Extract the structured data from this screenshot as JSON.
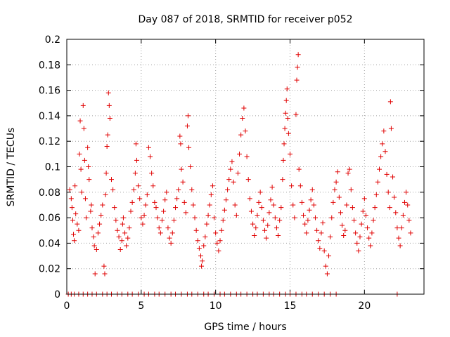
{
  "chart_data": {
    "type": "scatter",
    "title": "Day 087 of 2018, SRMTID for receiver p052",
    "xlabel": "GPS time / hours",
    "ylabel": "SRMTID / TECUs",
    "xlim": [
      0,
      24
    ],
    "ylim": [
      0,
      0.2
    ],
    "xticks": [
      0,
      5,
      10,
      15,
      20
    ],
    "xtick_labels": [
      "0",
      "5",
      "10",
      "15",
      "20"
    ],
    "yticks": [
      0,
      0.02,
      0.04,
      0.06,
      0.08,
      0.1,
      0.12,
      0.14,
      0.16,
      0.18,
      0.2
    ],
    "ytick_labels": [
      "0",
      "0.02",
      "0.04",
      "0.06",
      "0.08",
      "0.1",
      "0.12",
      "0.14",
      "0.16",
      "0.18",
      "0.2"
    ],
    "grid": true,
    "marker": "+",
    "color": "#e00000",
    "series": [
      {
        "name": "SRMTID",
        "points": [
          [
            0.2,
            0.082
          ],
          [
            0.3,
            0.075
          ],
          [
            0.35,
            0.068
          ],
          [
            0.4,
            0.058
          ],
          [
            0.45,
            0.047
          ],
          [
            0.5,
            0.042
          ],
          [
            0.55,
            0.085
          ],
          [
            0.6,
            0.063
          ],
          [
            0.7,
            0.055
          ],
          [
            0.8,
            0.05
          ],
          [
            0.85,
            0.11
          ],
          [
            0.9,
            0.136
          ],
          [
            0.95,
            0.098
          ],
          [
            1.0,
            0.08
          ],
          [
            1.1,
            0.148
          ],
          [
            1.15,
            0.13
          ],
          [
            1.2,
            0.105
          ],
          [
            1.25,
            0.075
          ],
          [
            1.3,
            0.06
          ],
          [
            1.4,
            0.115
          ],
          [
            1.45,
            0.1
          ],
          [
            1.5,
            0.09
          ],
          [
            1.6,
            0.065
          ],
          [
            1.65,
            0.07
          ],
          [
            1.7,
            0.052
          ],
          [
            1.8,
            0.045
          ],
          [
            1.85,
            0.038
          ],
          [
            1.9,
            0.016
          ],
          [
            2.0,
            0.035
          ],
          [
            2.1,
            0.048
          ],
          [
            2.2,
            0.055
          ],
          [
            2.3,
            0.062
          ],
          [
            2.4,
            0.07
          ],
          [
            2.5,
            0.022
          ],
          [
            2.55,
            0.016
          ],
          [
            2.6,
            0.078
          ],
          [
            2.65,
            0.095
          ],
          [
            2.7,
            0.116
          ],
          [
            2.75,
            0.125
          ],
          [
            2.8,
            0.158
          ],
          [
            2.85,
            0.148
          ],
          [
            2.9,
            0.138
          ],
          [
            3.0,
            0.09
          ],
          [
            3.1,
            0.082
          ],
          [
            3.2,
            0.068
          ],
          [
            3.3,
            0.058
          ],
          [
            3.4,
            0.05
          ],
          [
            3.5,
            0.045
          ],
          [
            3.6,
            0.035
          ],
          [
            3.7,
            0.042
          ],
          [
            3.75,
            0.055
          ],
          [
            3.8,
            0.06
          ],
          [
            3.9,
            0.048
          ],
          [
            4.0,
            0.038
          ],
          [
            4.1,
            0.044
          ],
          [
            4.2,
            0.052
          ],
          [
            4.3,
            0.065
          ],
          [
            4.4,
            0.072
          ],
          [
            4.5,
            0.082
          ],
          [
            4.6,
            0.095
          ],
          [
            4.65,
            0.118
          ],
          [
            4.7,
            0.105
          ],
          [
            4.8,
            0.085
          ],
          [
            4.9,
            0.075
          ],
          [
            5.0,
            0.06
          ],
          [
            5.1,
            0.055
          ],
          [
            5.2,
            0.062
          ],
          [
            5.3,
            0.07
          ],
          [
            5.4,
            0.078
          ],
          [
            5.5,
            0.115
          ],
          [
            5.6,
            0.108
          ],
          [
            5.7,
            0.095
          ],
          [
            5.8,
            0.085
          ],
          [
            5.9,
            0.072
          ],
          [
            6.0,
            0.068
          ],
          [
            6.1,
            0.06
          ],
          [
            6.2,
            0.052
          ],
          [
            6.3,
            0.048
          ],
          [
            6.4,
            0.058
          ],
          [
            6.5,
            0.065
          ],
          [
            6.6,
            0.074
          ],
          [
            6.7,
            0.08
          ],
          [
            6.8,
            0.052
          ],
          [
            6.9,
            0.044
          ],
          [
            7.0,
            0.04
          ],
          [
            7.1,
            0.048
          ],
          [
            7.2,
            0.058
          ],
          [
            7.3,
            0.068
          ],
          [
            7.4,
            0.075
          ],
          [
            7.5,
            0.082
          ],
          [
            7.6,
            0.124
          ],
          [
            7.65,
            0.118
          ],
          [
            7.7,
            0.098
          ],
          [
            7.8,
            0.088
          ],
          [
            7.9,
            0.072
          ],
          [
            8.0,
            0.064
          ],
          [
            8.1,
            0.132
          ],
          [
            8.15,
            0.14
          ],
          [
            8.2,
            0.115
          ],
          [
            8.3,
            0.1
          ],
          [
            8.4,
            0.082
          ],
          [
            8.5,
            0.07
          ],
          [
            8.6,
            0.06
          ],
          [
            8.7,
            0.05
          ],
          [
            8.8,
            0.042
          ],
          [
            8.9,
            0.036
          ],
          [
            9.0,
            0.03
          ],
          [
            9.05,
            0.022
          ],
          [
            9.1,
            0.026
          ],
          [
            9.2,
            0.038
          ],
          [
            9.3,
            0.045
          ],
          [
            9.4,
            0.055
          ],
          [
            9.5,
            0.062
          ],
          [
            9.6,
            0.07
          ],
          [
            9.7,
            0.078
          ],
          [
            9.8,
            0.085
          ],
          [
            9.9,
            0.06
          ],
          [
            10.0,
            0.048
          ],
          [
            10.1,
            0.04
          ],
          [
            10.2,
            0.034
          ],
          [
            10.3,
            0.042
          ],
          [
            10.4,
            0.05
          ],
          [
            10.5,
            0.058
          ],
          [
            10.6,
            0.066
          ],
          [
            10.7,
            0.074
          ],
          [
            10.8,
            0.082
          ],
          [
            10.9,
            0.09
          ],
          [
            11.0,
            0.098
          ],
          [
            11.1,
            0.104
          ],
          [
            11.2,
            0.088
          ],
          [
            11.3,
            0.07
          ],
          [
            11.4,
            0.062
          ],
          [
            11.5,
            0.095
          ],
          [
            11.6,
            0.11
          ],
          [
            11.7,
            0.125
          ],
          [
            11.8,
            0.138
          ],
          [
            11.9,
            0.146
          ],
          [
            12.0,
            0.128
          ],
          [
            12.1,
            0.108
          ],
          [
            12.2,
            0.09
          ],
          [
            12.3,
            0.075
          ],
          [
            12.4,
            0.065
          ],
          [
            12.5,
            0.055
          ],
          [
            12.6,
            0.046
          ],
          [
            12.7,
            0.052
          ],
          [
            12.8,
            0.062
          ],
          [
            12.9,
            0.072
          ],
          [
            13.0,
            0.08
          ],
          [
            13.1,
            0.068
          ],
          [
            13.2,
            0.058
          ],
          [
            13.3,
            0.05
          ],
          [
            13.4,
            0.044
          ],
          [
            13.5,
            0.054
          ],
          [
            13.6,
            0.064
          ],
          [
            13.7,
            0.074
          ],
          [
            13.8,
            0.084
          ],
          [
            13.9,
            0.07
          ],
          [
            14.0,
            0.06
          ],
          [
            14.1,
            0.052
          ],
          [
            14.2,
            0.046
          ],
          [
            14.3,
            0.058
          ],
          [
            14.4,
            0.068
          ],
          [
            14.5,
            0.09
          ],
          [
            14.55,
            0.105
          ],
          [
            14.6,
            0.118
          ],
          [
            14.65,
            0.13
          ],
          [
            14.7,
            0.142
          ],
          [
            14.75,
            0.152
          ],
          [
            14.8,
            0.161
          ],
          [
            14.85,
            0.138
          ],
          [
            14.9,
            0.126
          ],
          [
            15.0,
            0.11
          ],
          [
            15.1,
            0.085
          ],
          [
            15.2,
            0.07
          ],
          [
            15.3,
            0.06
          ],
          [
            15.4,
            0.141
          ],
          [
            15.45,
            0.168
          ],
          [
            15.5,
            0.178
          ],
          [
            15.55,
            0.188
          ],
          [
            15.6,
            0.098
          ],
          [
            15.7,
            0.085
          ],
          [
            15.8,
            0.072
          ],
          [
            15.9,
            0.062
          ],
          [
            16.0,
            0.055
          ],
          [
            16.1,
            0.048
          ],
          [
            16.2,
            0.058
          ],
          [
            16.3,
            0.066
          ],
          [
            16.4,
            0.074
          ],
          [
            16.5,
            0.082
          ],
          [
            16.6,
            0.07
          ],
          [
            16.7,
            0.06
          ],
          [
            16.8,
            0.05
          ],
          [
            16.9,
            0.042
          ],
          [
            17.0,
            0.036
          ],
          [
            17.1,
            0.048
          ],
          [
            17.2,
            0.056
          ],
          [
            17.3,
            0.034
          ],
          [
            17.4,
            0.022
          ],
          [
            17.5,
            0.016
          ],
          [
            17.6,
            0.03
          ],
          [
            17.7,
            0.045
          ],
          [
            17.8,
            0.06
          ],
          [
            17.9,
            0.072
          ],
          [
            18.0,
            0.082
          ],
          [
            18.1,
            0.088
          ],
          [
            18.2,
            0.096
          ],
          [
            18.3,
            0.076
          ],
          [
            18.4,
            0.064
          ],
          [
            18.5,
            0.054
          ],
          [
            18.6,
            0.046
          ],
          [
            18.7,
            0.05
          ],
          [
            18.8,
            0.07
          ],
          [
            18.9,
            0.095
          ],
          [
            19.0,
            0.098
          ],
          [
            19.1,
            0.082
          ],
          [
            19.2,
            0.068
          ],
          [
            19.3,
            0.058
          ],
          [
            19.4,
            0.048
          ],
          [
            19.5,
            0.04
          ],
          [
            19.6,
            0.034
          ],
          [
            19.7,
            0.045
          ],
          [
            19.8,
            0.055
          ],
          [
            19.9,
            0.065
          ],
          [
            20.0,
            0.075
          ],
          [
            20.1,
            0.062
          ],
          [
            20.2,
            0.052
          ],
          [
            20.3,
            0.044
          ],
          [
            20.4,
            0.038
          ],
          [
            20.5,
            0.048
          ],
          [
            20.6,
            0.058
          ],
          [
            20.7,
            0.068
          ],
          [
            20.8,
            0.078
          ],
          [
            20.9,
            0.088
          ],
          [
            21.0,
            0.098
          ],
          [
            21.1,
            0.108
          ],
          [
            21.2,
            0.118
          ],
          [
            21.3,
            0.128
          ],
          [
            21.4,
            0.112
          ],
          [
            21.5,
            0.094
          ],
          [
            21.6,
            0.08
          ],
          [
            21.7,
            0.068
          ],
          [
            21.75,
            0.151
          ],
          [
            21.8,
            0.13
          ],
          [
            21.9,
            0.092
          ],
          [
            22.0,
            0.076
          ],
          [
            22.1,
            0.064
          ],
          [
            22.2,
            0.052
          ],
          [
            22.3,
            0.044
          ],
          [
            22.4,
            0.038
          ],
          [
            22.5,
            0.052
          ],
          [
            22.6,
            0.062
          ],
          [
            22.7,
            0.072
          ],
          [
            22.8,
            0.08
          ],
          [
            22.9,
            0.07
          ],
          [
            23.0,
            0.058
          ],
          [
            23.1,
            0.048
          ]
        ],
        "zero_points": [
          0.1,
          0.3,
          0.5,
          0.8,
          1.1,
          1.4,
          1.7,
          2.0,
          2.4,
          2.7,
          3.0,
          3.4,
          3.7,
          4.1,
          4.4,
          4.8,
          5.2,
          5.5,
          5.9,
          6.2,
          6.6,
          7.0,
          7.3,
          7.7,
          8.1,
          8.4,
          8.8,
          9.2,
          9.5,
          9.9,
          10.3,
          10.6,
          11.0,
          11.4,
          11.7,
          12.1,
          12.5,
          12.8,
          13.2,
          13.6,
          13.9,
          14.3,
          14.7,
          15.0,
          15.4,
          15.8,
          16.1,
          16.5,
          16.9,
          17.3,
          17.7,
          18.1,
          22.2
        ]
      }
    ]
  }
}
